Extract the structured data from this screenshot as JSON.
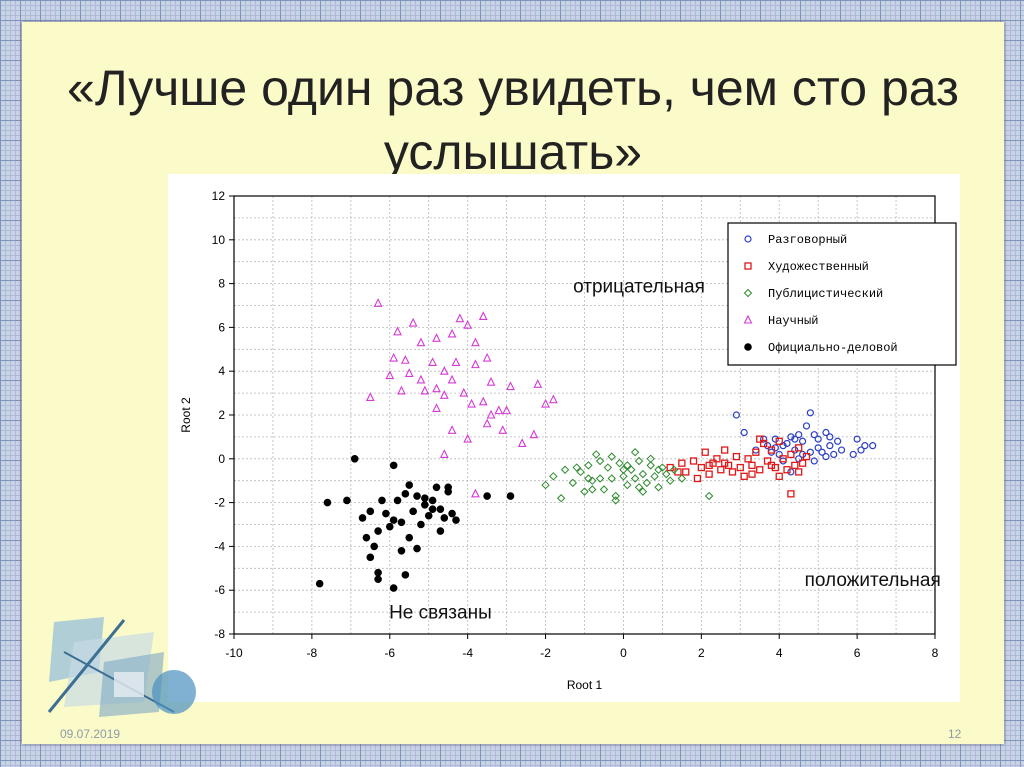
{
  "slide": {
    "title": "«Лучше один раз увидеть, чем сто раз услышать»",
    "date": "09.07.2019",
    "page": "12"
  },
  "colors": {
    "slide_bg": "#fbfbc9",
    "grid_bg": "#c9d3e6",
    "razgovorny": "#2a3fc4",
    "hudozhestvenny": "#e01818",
    "publicistichesky": "#2e8b2e",
    "nauchny": "#d63ad6",
    "oficialny": "#000000"
  },
  "chart_data": {
    "type": "scatter",
    "title": "",
    "xlabel": "Root 1",
    "ylabel": "Root 2",
    "xlim": [
      -10,
      8
    ],
    "ylim": [
      -8,
      12
    ],
    "x_ticks": [
      "-10",
      "-8",
      "-6",
      "-4",
      "-2",
      "0",
      "2",
      "4",
      "6",
      "8"
    ],
    "y_ticks": [
      "12",
      "10",
      "8",
      "6",
      "4",
      "2",
      "0",
      "-2",
      "-4",
      "-6",
      "-8"
    ],
    "grid": true,
    "legend_position": "top-right",
    "annotations": [
      {
        "text": "отрицательная",
        "x": 0.4,
        "y": 7.6
      },
      {
        "text": "положительная",
        "x": 6.4,
        "y": -5.8
      },
      {
        "text": "Не связаны",
        "x": -4.7,
        "y": -7.3
      }
    ],
    "series": [
      {
        "name": "Разговорный",
        "marker": "circle-open",
        "color": "#2a3fc4",
        "points": [
          [
            2.9,
            2.0
          ],
          [
            3.1,
            1.2
          ],
          [
            3.6,
            0.9
          ],
          [
            3.7,
            0.6
          ],
          [
            3.8,
            0.3
          ],
          [
            3.9,
            0.9
          ],
          [
            4.0,
            0.2
          ],
          [
            4.1,
            -0.1
          ],
          [
            4.2,
            0.7
          ],
          [
            4.3,
            1.0
          ],
          [
            4.4,
            0.4
          ],
          [
            4.5,
            0.0
          ],
          [
            4.6,
            0.8
          ],
          [
            4.7,
            1.5
          ],
          [
            4.8,
            2.1
          ],
          [
            4.9,
            1.1
          ],
          [
            5.0,
            0.5
          ],
          [
            5.1,
            0.3
          ],
          [
            5.2,
            1.2
          ],
          [
            5.3,
            0.6
          ],
          [
            5.4,
            0.2
          ],
          [
            5.5,
            0.8
          ],
          [
            5.6,
            0.4
          ],
          [
            5.0,
            0.9
          ],
          [
            4.6,
            0.2
          ],
          [
            4.4,
            0.9
          ],
          [
            5.9,
            0.2
          ],
          [
            6.0,
            0.9
          ],
          [
            6.2,
            0.6
          ],
          [
            6.4,
            0.6
          ],
          [
            4.3,
            -0.6
          ],
          [
            3.9,
            0.5
          ],
          [
            4.8,
            0.3
          ],
          [
            5.3,
            1.0
          ],
          [
            4.1,
            0.6
          ],
          [
            4.9,
            -0.1
          ],
          [
            5.2,
            0.1
          ],
          [
            4.5,
            1.1
          ],
          [
            3.4,
            0.4
          ],
          [
            6.1,
            0.4
          ]
        ]
      },
      {
        "name": "Художественный",
        "marker": "square-open",
        "color": "#e01818",
        "points": [
          [
            1.2,
            -0.4
          ],
          [
            1.5,
            -0.2
          ],
          [
            1.6,
            -0.6
          ],
          [
            1.8,
            -0.1
          ],
          [
            2.0,
            -0.4
          ],
          [
            2.1,
            0.3
          ],
          [
            2.2,
            -0.7
          ],
          [
            2.3,
            -0.2
          ],
          [
            2.4,
            0.0
          ],
          [
            2.5,
            -0.5
          ],
          [
            2.6,
            0.4
          ],
          [
            2.7,
            -0.3
          ],
          [
            2.8,
            -0.6
          ],
          [
            2.9,
            0.1
          ],
          [
            3.0,
            -0.4
          ],
          [
            3.1,
            -0.8
          ],
          [
            3.2,
            0.0
          ],
          [
            3.3,
            -0.3
          ],
          [
            3.4,
            0.3
          ],
          [
            3.5,
            -0.5
          ],
          [
            3.6,
            0.7
          ],
          [
            3.7,
            -0.1
          ],
          [
            3.8,
            0.4
          ],
          [
            3.9,
            -0.4
          ],
          [
            4.0,
            0.8
          ],
          [
            4.1,
            0.0
          ],
          [
            4.2,
            -0.5
          ],
          [
            4.3,
            0.2
          ],
          [
            4.4,
            -0.3
          ],
          [
            4.5,
            0.5
          ],
          [
            4.6,
            -0.2
          ],
          [
            4.7,
            0.1
          ],
          [
            3.5,
            0.9
          ],
          [
            4.3,
            -1.6
          ],
          [
            2.2,
            -0.3
          ],
          [
            1.9,
            -0.9
          ],
          [
            3.3,
            -0.7
          ],
          [
            4.0,
            -0.8
          ],
          [
            1.4,
            -0.6
          ],
          [
            2.6,
            -0.2
          ],
          [
            3.8,
            -0.3
          ],
          [
            4.5,
            -0.6
          ]
        ]
      },
      {
        "name": "Публицистический",
        "marker": "diamond-open",
        "color": "#2e8b2e",
        "points": [
          [
            -2.0,
            -1.2
          ],
          [
            -1.8,
            -0.8
          ],
          [
            -1.6,
            -1.8
          ],
          [
            -1.5,
            -0.5
          ],
          [
            -1.3,
            -1.1
          ],
          [
            -1.1,
            -0.6
          ],
          [
            -1.0,
            -1.5
          ],
          [
            -0.9,
            -0.3
          ],
          [
            -0.8,
            -1.0
          ],
          [
            -0.7,
            0.2
          ],
          [
            -0.6,
            -0.9
          ],
          [
            -0.5,
            -1.4
          ],
          [
            -0.4,
            -0.4
          ],
          [
            -0.3,
            -0.9
          ],
          [
            -0.2,
            -1.7
          ],
          [
            -0.1,
            -0.2
          ],
          [
            0.0,
            -0.8
          ],
          [
            0.1,
            -1.2
          ],
          [
            0.2,
            -0.5
          ],
          [
            0.3,
            -0.9
          ],
          [
            0.4,
            -0.1
          ],
          [
            0.5,
            -0.7
          ],
          [
            0.6,
            -1.1
          ],
          [
            0.7,
            -0.3
          ],
          [
            0.8,
            -0.8
          ],
          [
            0.9,
            -1.3
          ],
          [
            1.0,
            -0.4
          ],
          [
            1.1,
            -0.7
          ],
          [
            1.3,
            -0.5
          ],
          [
            1.5,
            -0.9
          ],
          [
            2.2,
            -1.7
          ],
          [
            0.3,
            0.3
          ],
          [
            -0.3,
            0.1
          ],
          [
            0.7,
            0.0
          ],
          [
            -0.9,
            -0.9
          ],
          [
            -1.2,
            -0.4
          ],
          [
            0.1,
            -0.3
          ],
          [
            0.5,
            -1.5
          ],
          [
            -0.6,
            -0.1
          ],
          [
            0.9,
            -0.5
          ],
          [
            -0.2,
            -1.9
          ],
          [
            1.2,
            -1.0
          ],
          [
            0.0,
            -0.5
          ],
          [
            0.4,
            -1.3
          ],
          [
            -0.8,
            -1.4
          ]
        ]
      },
      {
        "name": "Научный",
        "marker": "triangle-open",
        "color": "#d63ad6",
        "points": [
          [
            -6.3,
            7.1
          ],
          [
            -5.4,
            6.2
          ],
          [
            -4.2,
            6.4
          ],
          [
            -4.0,
            6.1
          ],
          [
            -3.6,
            6.5
          ],
          [
            -5.8,
            5.8
          ],
          [
            -5.2,
            5.3
          ],
          [
            -4.8,
            5.5
          ],
          [
            -4.4,
            5.7
          ],
          [
            -3.8,
            5.3
          ],
          [
            -3.5,
            4.6
          ],
          [
            -5.9,
            4.6
          ],
          [
            -5.6,
            4.5
          ],
          [
            -5.5,
            3.9
          ],
          [
            -4.9,
            4.4
          ],
          [
            -4.6,
            4.0
          ],
          [
            -4.3,
            4.4
          ],
          [
            -3.8,
            4.3
          ],
          [
            -3.4,
            3.5
          ],
          [
            -2.9,
            3.3
          ],
          [
            -2.2,
            3.4
          ],
          [
            -6.5,
            2.8
          ],
          [
            -6.0,
            3.8
          ],
          [
            -5.7,
            3.1
          ],
          [
            -5.2,
            3.6
          ],
          [
            -4.8,
            3.2
          ],
          [
            -4.6,
            2.9
          ],
          [
            -4.1,
            3.0
          ],
          [
            -3.6,
            2.6
          ],
          [
            -3.2,
            2.2
          ],
          [
            -4.4,
            1.3
          ],
          [
            -3.9,
            2.5
          ],
          [
            -3.4,
            2.0
          ],
          [
            -3.0,
            2.2
          ],
          [
            -4.0,
            0.9
          ],
          [
            -3.5,
            1.6
          ],
          [
            -3.1,
            1.3
          ],
          [
            -2.6,
            0.7
          ],
          [
            -2.3,
            1.1
          ],
          [
            -4.8,
            2.3
          ],
          [
            -5.1,
            3.1
          ],
          [
            -2.0,
            2.5
          ],
          [
            -4.6,
            0.2
          ],
          [
            -3.8,
            -1.6
          ],
          [
            -1.8,
            2.7
          ],
          [
            -4.4,
            3.6
          ]
        ]
      },
      {
        "name": "Официально-деловой",
        "marker": "circle-filled",
        "color": "#000000",
        "points": [
          [
            -7.8,
            -5.7
          ],
          [
            -7.6,
            -2.0
          ],
          [
            -7.1,
            -1.9
          ],
          [
            -6.9,
            0.0
          ],
          [
            -6.7,
            -2.7
          ],
          [
            -6.6,
            -3.6
          ],
          [
            -6.5,
            -2.4
          ],
          [
            -6.4,
            -4.0
          ],
          [
            -6.3,
            -5.5
          ],
          [
            -6.2,
            -1.9
          ],
          [
            -6.1,
            -2.5
          ],
          [
            -6.0,
            -3.1
          ],
          [
            -5.9,
            -0.3
          ],
          [
            -5.8,
            -1.9
          ],
          [
            -5.7,
            -2.9
          ],
          [
            -5.6,
            -1.6
          ],
          [
            -5.5,
            -3.6
          ],
          [
            -5.4,
            -2.4
          ],
          [
            -5.3,
            -1.7
          ],
          [
            -5.2,
            -3.0
          ],
          [
            -5.1,
            -1.8
          ],
          [
            -5.0,
            -2.6
          ],
          [
            -4.9,
            -2.3
          ],
          [
            -4.8,
            -1.3
          ],
          [
            -4.7,
            -3.3
          ],
          [
            -4.6,
            -2.7
          ],
          [
            -4.5,
            -1.5
          ],
          [
            -4.4,
            -2.5
          ],
          [
            -4.3,
            -2.8
          ],
          [
            -4.9,
            -1.9
          ],
          [
            -5.5,
            -1.2
          ],
          [
            -6.5,
            -4.5
          ],
          [
            -6.3,
            -5.2
          ],
          [
            -5.9,
            -5.9
          ],
          [
            -5.7,
            -4.2
          ],
          [
            -5.3,
            -4.1
          ],
          [
            -5.9,
            -2.8
          ],
          [
            -4.7,
            -2.3
          ],
          [
            -3.5,
            -1.7
          ],
          [
            -2.9,
            -1.7
          ],
          [
            -4.5,
            -1.3
          ],
          [
            -6.3,
            -3.3
          ],
          [
            -5.6,
            -5.3
          ],
          [
            -5.1,
            -2.1
          ]
        ]
      }
    ]
  }
}
